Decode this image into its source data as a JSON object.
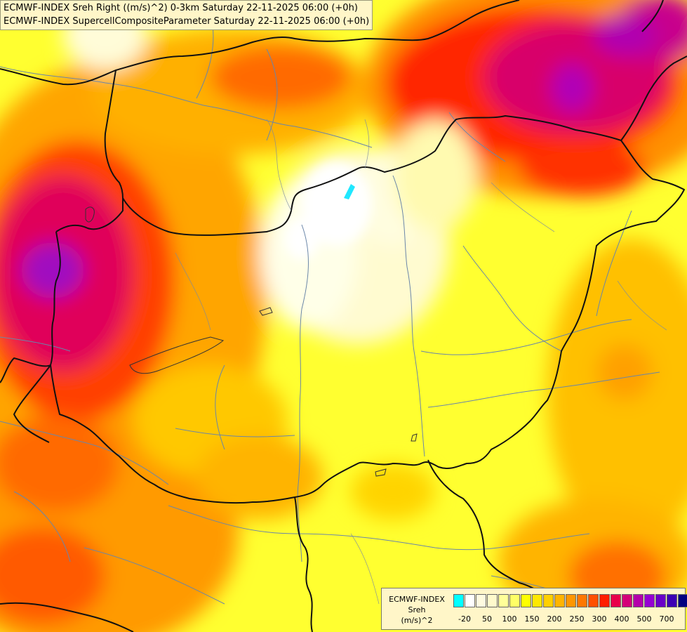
{
  "title": {
    "line1": "ECMWF-INDEX Sreh Right ((m/s)^2) 0-3km Saturday 22-11-2025 06:00 (+0h)",
    "line2": "ECMWF-INDEX SupercellCompositeParameter Saturday 22-11-2025 06:00 (+0h)"
  },
  "legend": {
    "model": "ECMWF-INDEX",
    "variable": "Sreh",
    "unit": "(m/s)^2",
    "colors": [
      "#00ffff",
      "#ffffff",
      "#fffbe0",
      "#fffacc",
      "#ffff99",
      "#ffff66",
      "#ffff00",
      "#ffe800",
      "#ffd000",
      "#ffb400",
      "#ff9600",
      "#ff7800",
      "#ff5000",
      "#ff1e00",
      "#e8004a",
      "#d40078",
      "#b400aa",
      "#9600d2",
      "#6a00c8",
      "#3c00b4",
      "#000080"
    ],
    "ticks": [
      "-20",
      "50",
      "100",
      "150",
      "200",
      "250",
      "300",
      "400",
      "500",
      "700"
    ]
  }
}
